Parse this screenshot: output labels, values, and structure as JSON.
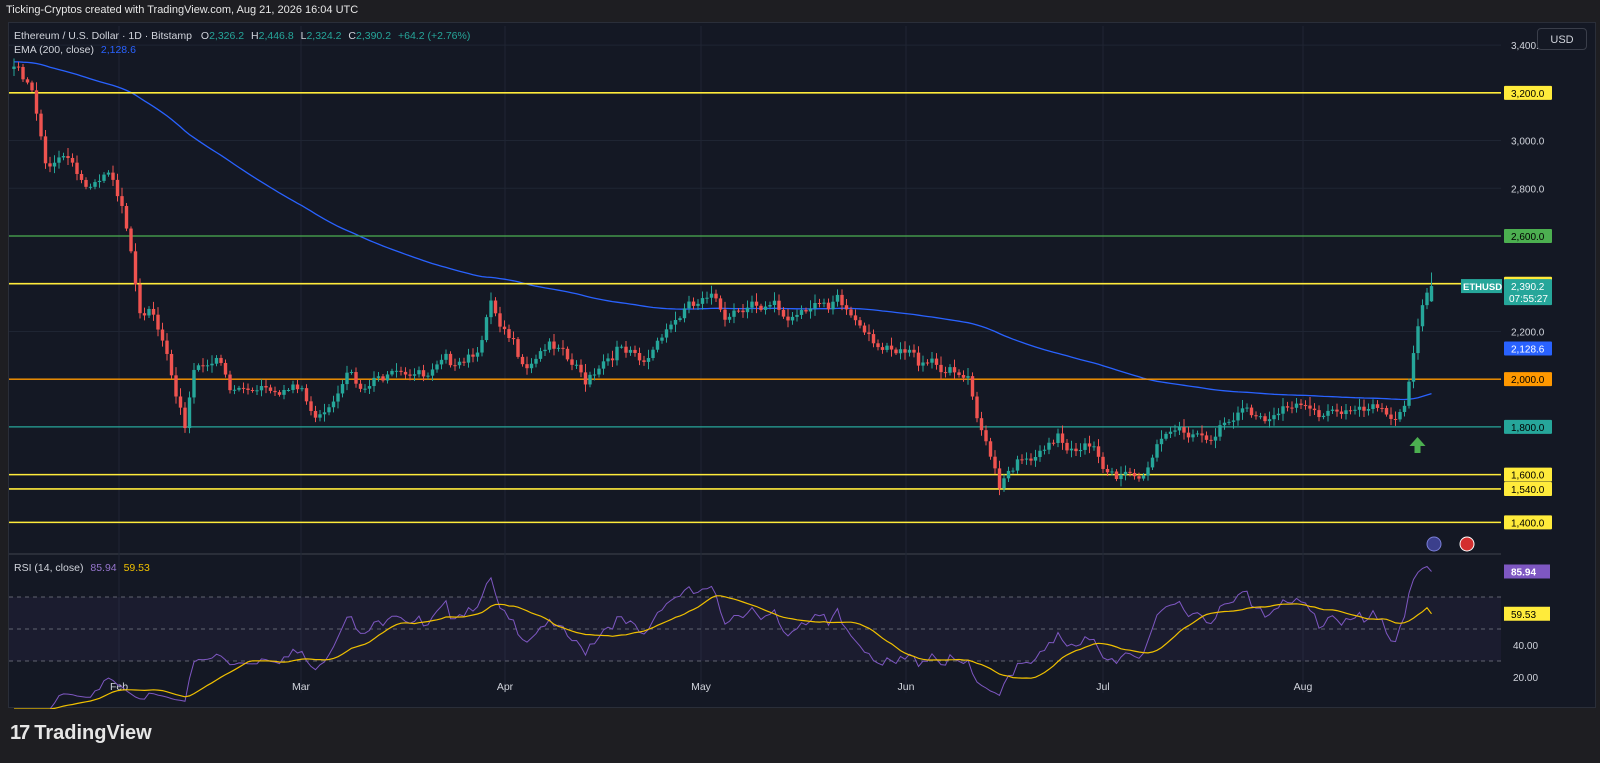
{
  "header": {
    "attribution": "Ticking-Cryptos created with TradingView.com, Aug 21, 2026 16:04 UTC"
  },
  "legend": {
    "symbol": "Ethereum / U.S. Dollar · 1D · Bitstamp",
    "open_label": "O",
    "open": "2,326.2",
    "high_label": "H",
    "high": "2,446.8",
    "low_label": "L",
    "low": "2,324.2",
    "close_label": "C",
    "close": "2,390.2",
    "change": "+64.2 (+2.76%)",
    "ema_label": "EMA (200, close)",
    "ema_value": "2,128.6",
    "rsi_label": "RSI (14, close)",
    "rsi_value": "85.94",
    "rsi_ma_value": "59.53"
  },
  "currency_button": "USD",
  "footer": {
    "brand": "TradingView"
  },
  "colors": {
    "up": "#26a69a",
    "down": "#ef5350",
    "ema": "#2962ff",
    "rsi": "#7e57c2",
    "rsi_ma": "#f0c000",
    "yellow": "#ffeb3b",
    "green": "#4caf50",
    "orange": "#ff9800",
    "teal": "#26a69a"
  },
  "chart_data": [
    {
      "type": "candlestick",
      "title": "Ethereum / U.S. Dollar · 1D · Bitstamp",
      "ylim": [
        1280,
        3480
      ],
      "y_ticks": [
        "3,400.0",
        "3,000.0",
        "2,800.0",
        "2,200.0"
      ],
      "x_ticks": [
        "Feb",
        "Mar",
        "Apr",
        "May",
        "Jun",
        "Jul",
        "Aug"
      ],
      "horizontal_levels": [
        {
          "value": 3200,
          "label": "3,200.0",
          "color": "yellow"
        },
        {
          "value": 2600,
          "label": "2,600.0",
          "color": "green"
        },
        {
          "value": 2400,
          "label": "2,400.0",
          "color": "yellow"
        },
        {
          "value": 2000,
          "label": "2,000.0",
          "color": "orange"
        },
        {
          "value": 1800,
          "label": "1,800.0",
          "color": "teal"
        },
        {
          "value": 1600,
          "label": "1,600.0",
          "color": "yellow"
        },
        {
          "value": 1540,
          "label": "1,540.0",
          "color": "yellow"
        },
        {
          "value": 1400,
          "label": "1,400.0",
          "color": "yellow"
        }
      ],
      "last_price": {
        "symbol": "ETHUSD",
        "value": "2,390.2",
        "countdown": "07:55:27"
      },
      "ema": {
        "name": "EMA (200, close)",
        "value": "2,128.6"
      },
      "close_anchors": [
        [
          0,
          3310
        ],
        [
          4,
          3200
        ],
        [
          7,
          2900
        ],
        [
          12,
          2950
        ],
        [
          16,
          2780
        ],
        [
          21,
          2850
        ],
        [
          24,
          2750
        ],
        [
          26,
          2550
        ],
        [
          28,
          2300
        ],
        [
          31,
          2250
        ],
        [
          34,
          2100
        ],
        [
          36,
          1900
        ],
        [
          38,
          1810
        ],
        [
          40,
          2050
        ],
        [
          43,
          2080
        ],
        [
          46,
          2060
        ],
        [
          48,
          1950
        ],
        [
          52,
          1960
        ],
        [
          56,
          1980
        ],
        [
          60,
          1950
        ],
        [
          64,
          1960
        ],
        [
          66,
          1850
        ],
        [
          69,
          1880
        ],
        [
          71,
          1920
        ],
        [
          74,
          2050
        ],
        [
          77,
          1940
        ],
        [
          81,
          2000
        ],
        [
          84,
          2060
        ],
        [
          88,
          2030
        ],
        [
          92,
          2000
        ],
        [
          96,
          2080
        ],
        [
          100,
          2090
        ],
        [
          104,
          2150
        ],
        [
          106,
          2320
        ],
        [
          108,
          2200
        ],
        [
          111,
          2150
        ],
        [
          114,
          2060
        ],
        [
          118,
          2140
        ],
        [
          122,
          2100
        ],
        [
          125,
          2040
        ],
        [
          127,
          2000
        ],
        [
          131,
          2080
        ],
        [
          134,
          2120
        ],
        [
          137,
          2100
        ],
        [
          140,
          2060
        ],
        [
          144,
          2200
        ],
        [
          147,
          2250
        ],
        [
          150,
          2300
        ],
        [
          153,
          2320
        ],
        [
          156,
          2340
        ],
        [
          158,
          2270
        ],
        [
          161,
          2300
        ],
        [
          164,
          2320
        ],
        [
          166,
          2270
        ],
        [
          169,
          2310
        ],
        [
          172,
          2250
        ],
        [
          175,
          2300
        ],
        [
          178,
          2320
        ],
        [
          181,
          2280
        ],
        [
          183,
          2330
        ],
        [
          186,
          2270
        ],
        [
          188,
          2240
        ],
        [
          190,
          2200
        ],
        [
          193,
          2120
        ],
        [
          196,
          2100
        ],
        [
          199,
          2110
        ],
        [
          201,
          2080
        ],
        [
          204,
          2090
        ],
        [
          207,
          2030
        ],
        [
          210,
          2010
        ],
        [
          212,
          1990
        ],
        [
          214,
          1820
        ],
        [
          217,
          1700
        ],
        [
          219,
          1560
        ],
        [
          221,
          1630
        ],
        [
          224,
          1650
        ],
        [
          227,
          1660
        ],
        [
          230,
          1710
        ],
        [
          232,
          1780
        ],
        [
          234,
          1720
        ],
        [
          237,
          1720
        ],
        [
          240,
          1700
        ],
        [
          242,
          1610
        ],
        [
          245,
          1600
        ],
        [
          248,
          1620
        ],
        [
          250,
          1590
        ],
        [
          252,
          1640
        ],
        [
          254,
          1700
        ],
        [
          257,
          1770
        ],
        [
          259,
          1790
        ],
        [
          262,
          1780
        ],
        [
          265,
          1760
        ],
        [
          268,
          1790
        ],
        [
          271,
          1820
        ],
        [
          273,
          1870
        ],
        [
          276,
          1860
        ],
        [
          278,
          1840
        ],
        [
          281,
          1880
        ],
        [
          284,
          1870
        ],
        [
          287,
          1880
        ],
        [
          290,
          1850
        ],
        [
          293,
          1880
        ],
        [
          296,
          1870
        ],
        [
          299,
          1860
        ],
        [
          302,
          1870
        ],
        [
          305,
          1860
        ],
        [
          307,
          1850
        ],
        [
          309,
          1890
        ],
        [
          311,
          2120
        ],
        [
          313,
          2300
        ],
        [
          315,
          2390
        ]
      ],
      "final_candle": {
        "open": 2326.2,
        "high": 2446.8,
        "low": 2324.2,
        "close": 2390.2
      }
    },
    {
      "type": "line",
      "title": "RSI (14, close)",
      "ylim": [
        10,
        95
      ],
      "y_ticks": [
        "60.00",
        "40.00",
        "20.00"
      ],
      "band": [
        30,
        70
      ],
      "series": [
        {
          "name": "RSI",
          "value": "85.94"
        },
        {
          "name": "RSI MA",
          "value": "59.53"
        }
      ]
    }
  ]
}
